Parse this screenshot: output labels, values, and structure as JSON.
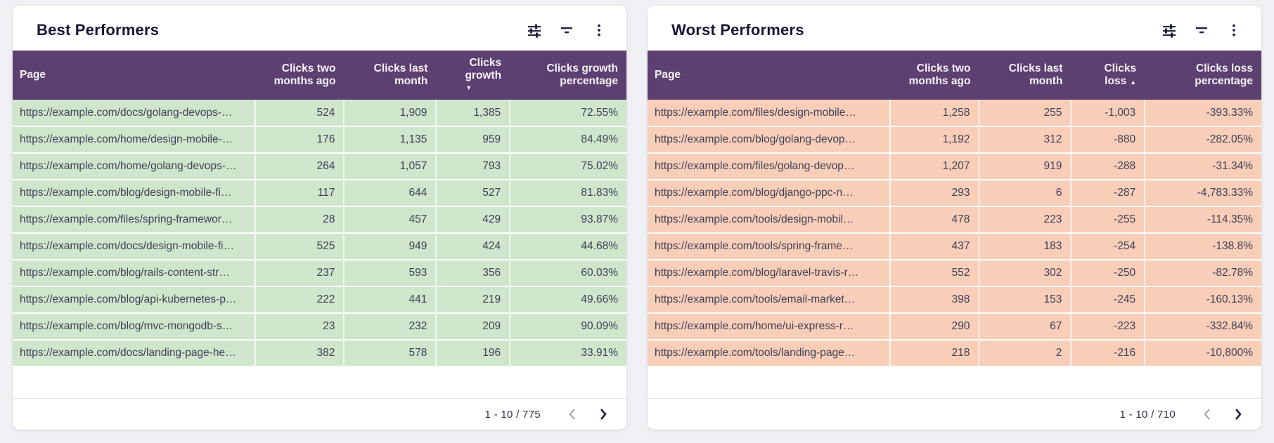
{
  "colors": {
    "table_header_bg": "#5c4070",
    "best_row_bg": "#cfe6cc",
    "worst_row_bg": "#f8ceb9",
    "cell_text": "#3c3f55",
    "title_text": "#161736",
    "page_bg": "#eef0f4"
  },
  "toolbar_icons": [
    "tune-icon",
    "filter-icon",
    "more-vert-icon"
  ],
  "cards": [
    {
      "title": "Best Performers",
      "style": "best",
      "columns": [
        {
          "label": "Page",
          "align": "left"
        },
        {
          "label": "Clicks two months ago",
          "align": "right"
        },
        {
          "label": "Clicks last month",
          "align": "right"
        },
        {
          "label": "Clicks growth",
          "align": "right",
          "sort": {
            "direction": "desc",
            "arrow": "▼",
            "position": "below"
          }
        },
        {
          "label": "Clicks growth percentage",
          "align": "right"
        }
      ],
      "rows": [
        [
          "https://example.com/docs/golang-devops-…",
          "524",
          "1,909",
          "1,385",
          "72.55%"
        ],
        [
          "https://example.com/home/design-mobile-…",
          "176",
          "1,135",
          "959",
          "84.49%"
        ],
        [
          "https://example.com/home/golang-devops-…",
          "264",
          "1,057",
          "793",
          "75.02%"
        ],
        [
          "https://example.com/blog/design-mobile-fi…",
          "117",
          "644",
          "527",
          "81.83%"
        ],
        [
          "https://example.com/files/spring-framewor…",
          "28",
          "457",
          "429",
          "93.87%"
        ],
        [
          "https://example.com/docs/design-mobile-fi…",
          "525",
          "949",
          "424",
          "44.68%"
        ],
        [
          "https://example.com/blog/rails-content-str…",
          "237",
          "593",
          "356",
          "60.03%"
        ],
        [
          "https://example.com/blog/api-kubernetes-p…",
          "222",
          "441",
          "219",
          "49.66%"
        ],
        [
          "https://example.com/blog/mvc-mongodb-s…",
          "23",
          "232",
          "209",
          "90.09%"
        ],
        [
          "https://example.com/docs/landing-page-he…",
          "382",
          "578",
          "196",
          "33.91%"
        ]
      ],
      "pagination": {
        "label": "1 - 10 / 775",
        "prev_enabled": false,
        "next_enabled": true
      }
    },
    {
      "title": "Worst Performers",
      "style": "worst",
      "columns": [
        {
          "label": "Page",
          "align": "left"
        },
        {
          "label": "Clicks two months ago",
          "align": "right"
        },
        {
          "label": "Clicks last month",
          "align": "right"
        },
        {
          "label": "Clicks loss",
          "align": "right",
          "sort": {
            "direction": "asc",
            "arrow": "▲",
            "position": "inline"
          }
        },
        {
          "label": "Clicks loss percentage",
          "align": "right"
        }
      ],
      "rows": [
        [
          "https://example.com/files/design-mobile…",
          "1,258",
          "255",
          "-1,003",
          "-393.33%"
        ],
        [
          "https://example.com/blog/golang-devop…",
          "1,192",
          "312",
          "-880",
          "-282.05%"
        ],
        [
          "https://example.com/files/golang-devop…",
          "1,207",
          "919",
          "-288",
          "-31.34%"
        ],
        [
          "https://example.com/blog/django-ppc-n…",
          "293",
          "6",
          "-287",
          "-4,783.33%"
        ],
        [
          "https://example.com/tools/design-mobil…",
          "478",
          "223",
          "-255",
          "-114.35%"
        ],
        [
          "https://example.com/tools/spring-frame…",
          "437",
          "183",
          "-254",
          "-138.8%"
        ],
        [
          "https://example.com/blog/laravel-travis-r…",
          "552",
          "302",
          "-250",
          "-82.78%"
        ],
        [
          "https://example.com/tools/email-market…",
          "398",
          "153",
          "-245",
          "-160.13%"
        ],
        [
          "https://example.com/home/ui-express-r…",
          "290",
          "67",
          "-223",
          "-332.84%"
        ],
        [
          "https://example.com/tools/landing-page…",
          "218",
          "2",
          "-216",
          "-10,800%"
        ]
      ],
      "pagination": {
        "label": "1 - 10 / 710",
        "prev_enabled": false,
        "next_enabled": true
      }
    }
  ],
  "chart_data": [
    {
      "type": "table",
      "title": "Best Performers",
      "columns": [
        "Page",
        "Clicks two months ago",
        "Clicks last month",
        "Clicks growth",
        "Clicks growth percentage"
      ],
      "sorted_by": "Clicks growth desc",
      "total_rows": 775,
      "visible_range": "1 - 10"
    },
    {
      "type": "table",
      "title": "Worst Performers",
      "columns": [
        "Page",
        "Clicks two months ago",
        "Clicks last month",
        "Clicks loss",
        "Clicks loss percentage"
      ],
      "sorted_by": "Clicks loss asc",
      "total_rows": 710,
      "visible_range": "1 - 10"
    }
  ]
}
